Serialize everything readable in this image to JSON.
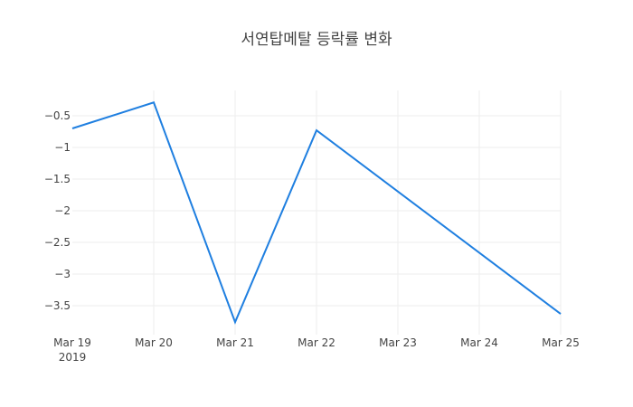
{
  "chart_data": {
    "type": "line",
    "title": "서연탑메탈 등락률 변화",
    "xlabel": "",
    "ylabel": "",
    "x": [
      "2019-03-19",
      "2019-03-20",
      "2019-03-21",
      "2019-03-22",
      "2019-03-25"
    ],
    "x_tick_labels": [
      "Mar 19",
      "Mar 20",
      "Mar 21",
      "Mar 22",
      "Mar 23",
      "Mar 24",
      "Mar 25"
    ],
    "x_tick_sublabel": "2019",
    "y_tick_labels": [
      "−0.5",
      "−1",
      "−1.5",
      "−2",
      "−2.5",
      "−3",
      "−3.5"
    ],
    "y_ticks": [
      -0.5,
      -1,
      -1.5,
      -2,
      -2.5,
      -3,
      -3.5
    ],
    "ylim": [
      -3.93,
      -0.07
    ],
    "grid": true,
    "legend": "none",
    "series": [
      {
        "name": "등락률",
        "color": "#1f7fe0",
        "values": [
          -0.7,
          -0.29,
          -3.76,
          -0.73,
          -3.63
        ]
      }
    ]
  }
}
